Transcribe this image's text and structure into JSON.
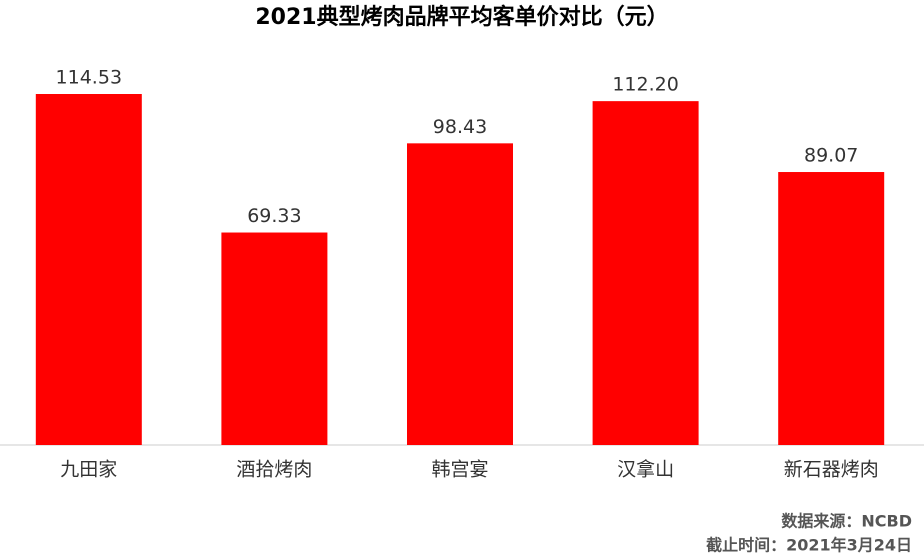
{
  "chart_data": {
    "type": "bar",
    "title": "2021典型烤肉品牌平均客单价对比（元）",
    "categories": [
      "九田家",
      "酒拾烤肉",
      "韩宫宴",
      "汉拿山",
      "新石器烤肉"
    ],
    "values": [
      114.53,
      69.33,
      98.43,
      112.2,
      89.07
    ],
    "value_labels": [
      "114.53",
      "69.33",
      "98.43",
      "112.20",
      "89.07"
    ],
    "color": "#ff0000",
    "notes": [
      "数据来源：NCBD",
      "截止时间：2021年3月24日"
    ]
  }
}
